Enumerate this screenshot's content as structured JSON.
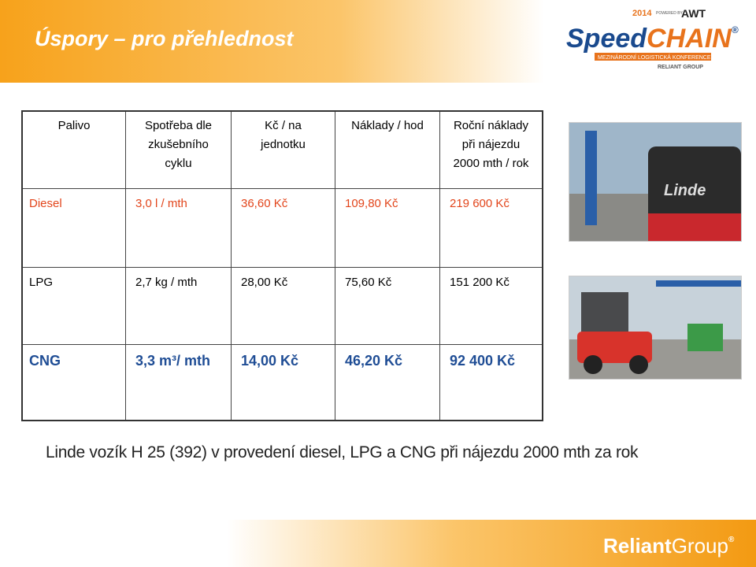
{
  "header": {
    "title": "Úspory – pro přehlednost",
    "logo": {
      "year": "2014",
      "powered": "POWERED BY",
      "brand": "AWT",
      "name1": "Speed",
      "name2": "CHAIN",
      "registered": "®",
      "tagline": "MEZINÁRODNÍ LOGISTICKÁ KONFERENCE",
      "group": "RELIANT GROUP"
    }
  },
  "table": {
    "columns": [
      [
        "Palivo"
      ],
      [
        "Spotřeba dle",
        "zkušebního",
        "cyklu"
      ],
      [
        "Kč / na",
        "jednotku"
      ],
      [
        "Náklady / hod"
      ],
      [
        "Roční náklady",
        "při nájezdu",
        "2000 mth / rok"
      ]
    ],
    "rows": [
      [
        "Diesel",
        "3,0 l / mth",
        "36,60 Kč",
        "109,80 Kč",
        "219 600 Kč"
      ],
      [
        "LPG",
        "2,7 kg / mth",
        "28,00 Kč",
        "75,60 Kč",
        "151 200 Kč"
      ],
      [
        "CNG",
        "3,3 m³/ mth",
        "14,00 Kč",
        "46,20 Kč",
        "92 400 Kč"
      ]
    ]
  },
  "photos": {
    "brand": "Linde"
  },
  "caption": "Linde vozík H 25 (392) v provedení diesel, LPG a CNG při nájezdu 2000 mth za rok",
  "footer": {
    "logo1": "Reliant",
    "logo2": "Group",
    "registered": "®"
  }
}
